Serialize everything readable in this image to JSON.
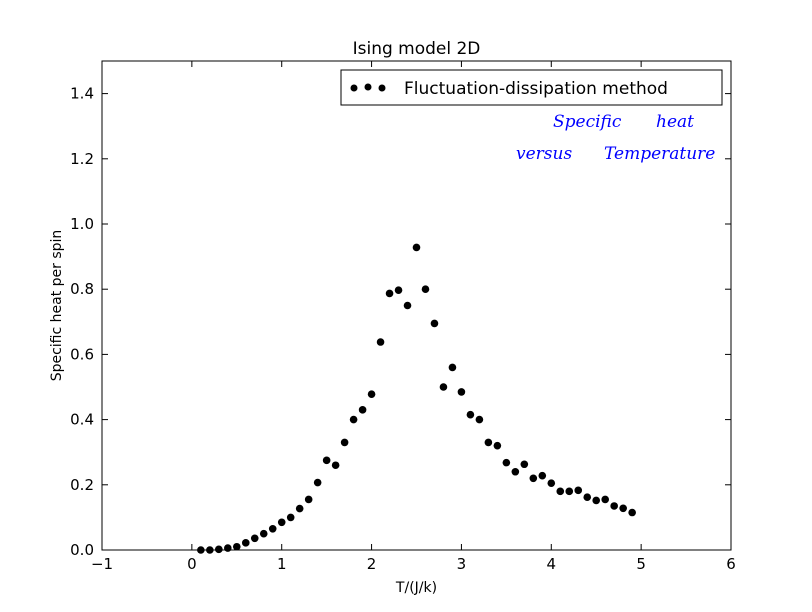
{
  "chart_data": {
    "type": "scatter",
    "title": "Ising model 2D",
    "xlabel": "T/(J/k)",
    "ylabel": "Specific heat per spin",
    "xlim": [
      -1,
      6
    ],
    "ylim": [
      0,
      1.5
    ],
    "xticks": [
      -1,
      0,
      1,
      2,
      3,
      4,
      5,
      6
    ],
    "xtick_labels": [
      "−1",
      "0",
      "1",
      "2",
      "3",
      "4",
      "5",
      "6"
    ],
    "yticks": [
      0.0,
      0.2,
      0.4,
      0.6,
      0.8,
      1.0,
      1.2,
      1.4
    ],
    "ytick_labels": [
      "0.0",
      "0.2",
      "0.4",
      "0.6",
      "0.8",
      "1.0",
      "1.2",
      "1.4"
    ],
    "grid": false,
    "legend_position": "top-right",
    "annotation": {
      "line1": [
        "Specific",
        "heat"
      ],
      "line2": [
        "versus",
        "Temperature"
      ],
      "color": "#0000ff"
    },
    "series": [
      {
        "name": "Fluctuation-dissipation method",
        "color": "#000000",
        "marker": "circle",
        "x": [
          0.1,
          0.2,
          0.3,
          0.4,
          0.5,
          0.6,
          0.7,
          0.8,
          0.9,
          1.0,
          1.1,
          1.2,
          1.3,
          1.4,
          1.5,
          1.6,
          1.7,
          1.8,
          1.9,
          2.0,
          2.1,
          2.2,
          2.3,
          2.4,
          2.5,
          2.6,
          2.7,
          2.8,
          2.9,
          3.0,
          3.1,
          3.2,
          3.3,
          3.4,
          3.5,
          3.6,
          3.7,
          3.8,
          3.9,
          4.0,
          4.1,
          4.2,
          4.3,
          4.4,
          4.5,
          4.6,
          4.7,
          4.8,
          4.9
        ],
        "y": [
          0.0,
          0.0,
          0.002,
          0.006,
          0.01,
          0.022,
          0.036,
          0.05,
          0.065,
          0.085,
          0.1,
          0.127,
          0.155,
          0.207,
          0.275,
          0.26,
          0.33,
          0.4,
          0.43,
          0.478,
          0.638,
          0.787,
          0.797,
          0.75,
          0.928,
          0.8,
          0.695,
          0.5,
          0.56,
          0.485,
          0.415,
          0.4,
          0.33,
          0.32,
          0.268,
          0.24,
          0.263,
          0.22,
          0.228,
          0.205,
          0.18,
          0.18,
          0.183,
          0.162,
          0.152,
          0.155,
          0.135,
          0.128,
          0.115
        ]
      }
    ]
  }
}
